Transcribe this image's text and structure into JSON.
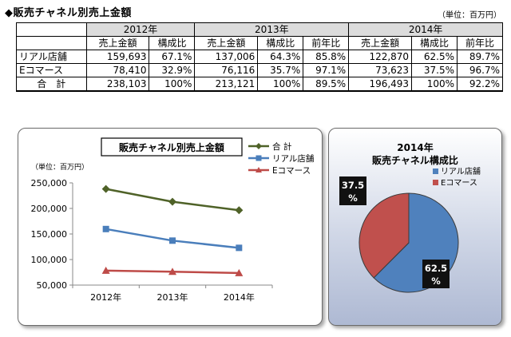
{
  "header": {
    "title": "◆販売チャネル別売上金額",
    "unit": "（単位：百万円）"
  },
  "table": {
    "years": [
      "2012年",
      "2013年",
      "2014年"
    ],
    "subheaders": {
      "sales": "売上金額",
      "share": "構成比",
      "yoy": "前年比"
    },
    "rows": [
      {
        "label": "リアル店舗",
        "y2012": {
          "sales": "159,693",
          "share": "67.1%"
        },
        "y2013": {
          "sales": "137,006",
          "share": "64.3%",
          "yoy": "85.8%"
        },
        "y2014": {
          "sales": "122,870",
          "share": "62.5%",
          "yoy": "89.7%"
        }
      },
      {
        "label": "Eコマース",
        "y2012": {
          "sales": "78,410",
          "share": "32.9%"
        },
        "y2013": {
          "sales": "76,116",
          "share": "35.7%",
          "yoy": "97.1%"
        },
        "y2014": {
          "sales": "73,623",
          "share": "37.5%",
          "yoy": "96.7%"
        }
      },
      {
        "label": "合　計",
        "y2012": {
          "sales": "238,103",
          "share": "100%"
        },
        "y2013": {
          "sales": "213,121",
          "share": "100%",
          "yoy": "89.5%"
        },
        "y2014": {
          "sales": "196,493",
          "share": "100%",
          "yoy": "92.2%"
        }
      }
    ]
  },
  "chart_data": [
    {
      "type": "line",
      "title": "販売チャネル別売上金額",
      "unit_label": "（単位：百万円）",
      "categories": [
        "2012年",
        "2013年",
        "2014年"
      ],
      "ylim": [
        50000,
        250000
      ],
      "yticks": [
        50000,
        100000,
        150000,
        200000,
        250000
      ],
      "ytick_labels": [
        "50,000",
        "100,000",
        "150,000",
        "200,000",
        "250,000"
      ],
      "grid": false,
      "legend": "top-right",
      "series": [
        {
          "name": "合 計",
          "values": [
            238103,
            213121,
            196493
          ],
          "color": "#4f6228",
          "marker": "diamond"
        },
        {
          "name": "リアル店舗",
          "values": [
            159693,
            137006,
            122870
          ],
          "color": "#4a7ebb",
          "marker": "square"
        },
        {
          "name": "Eコマース",
          "values": [
            78410,
            76116,
            73623
          ],
          "color": "#be4b48",
          "marker": "triangle"
        }
      ]
    },
    {
      "type": "pie",
      "title_line1": "2014年",
      "title_line2": "販売チャネル構成比",
      "legend": "right",
      "slices": [
        {
          "name": "リアル店舗",
          "value": 62.5,
          "label_line1": "62.5",
          "label_line2": "%",
          "color": "#4f81bd"
        },
        {
          "name": "Eコマース",
          "value": 37.5,
          "label_line1": "37.5",
          "label_line2": "%",
          "color": "#c0504d"
        }
      ]
    }
  ]
}
